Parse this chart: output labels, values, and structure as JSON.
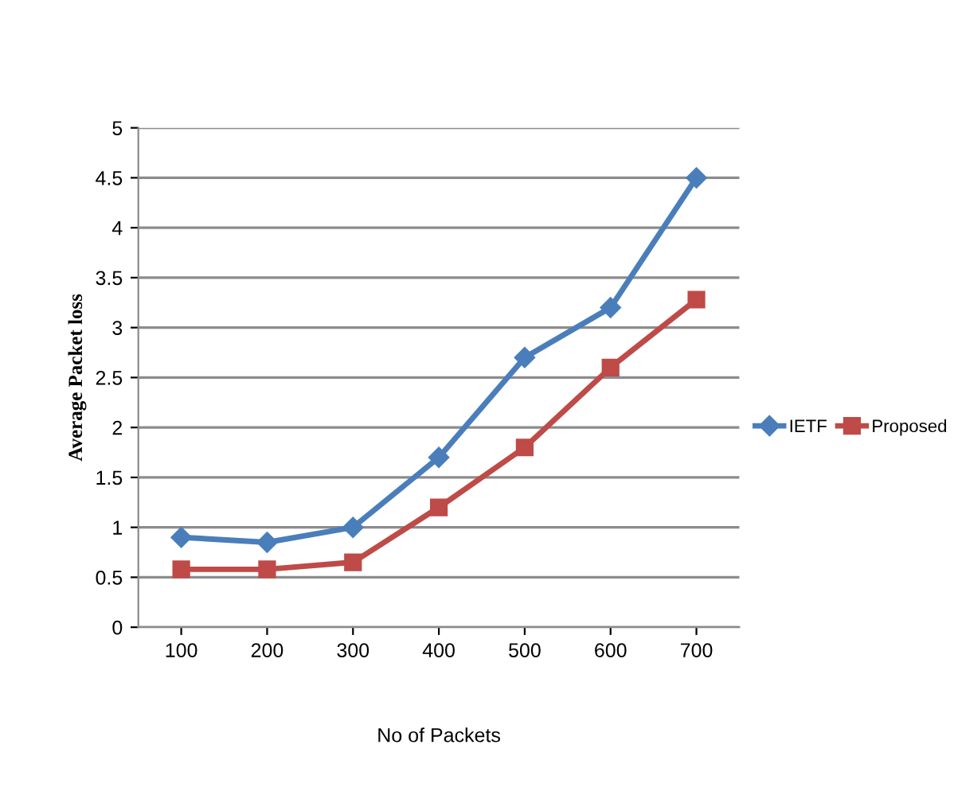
{
  "chart_data": {
    "type": "line",
    "xlabel": "No of Packets",
    "ylabel": "Average Packet loss",
    "categories": [
      "100",
      "200",
      "300",
      "400",
      "500",
      "600",
      "700"
    ],
    "series": [
      {
        "name": "IETF",
        "color": "#4a7ebb",
        "marker": "diamond",
        "values": [
          0.9,
          0.85,
          1.0,
          1.7,
          2.7,
          3.2,
          4.5
        ]
      },
      {
        "name": "Proposed",
        "color": "#be4b48",
        "marker": "square",
        "values": [
          0.58,
          0.58,
          0.65,
          1.2,
          1.8,
          2.6,
          3.28
        ]
      }
    ],
    "ylim": [
      0,
      5
    ],
    "yticks": [
      0,
      0.5,
      1,
      1.5,
      2,
      2.5,
      3,
      3.5,
      4,
      4.5,
      5
    ],
    "grid": "y",
    "legend": "right",
    "line_style": "solid"
  }
}
